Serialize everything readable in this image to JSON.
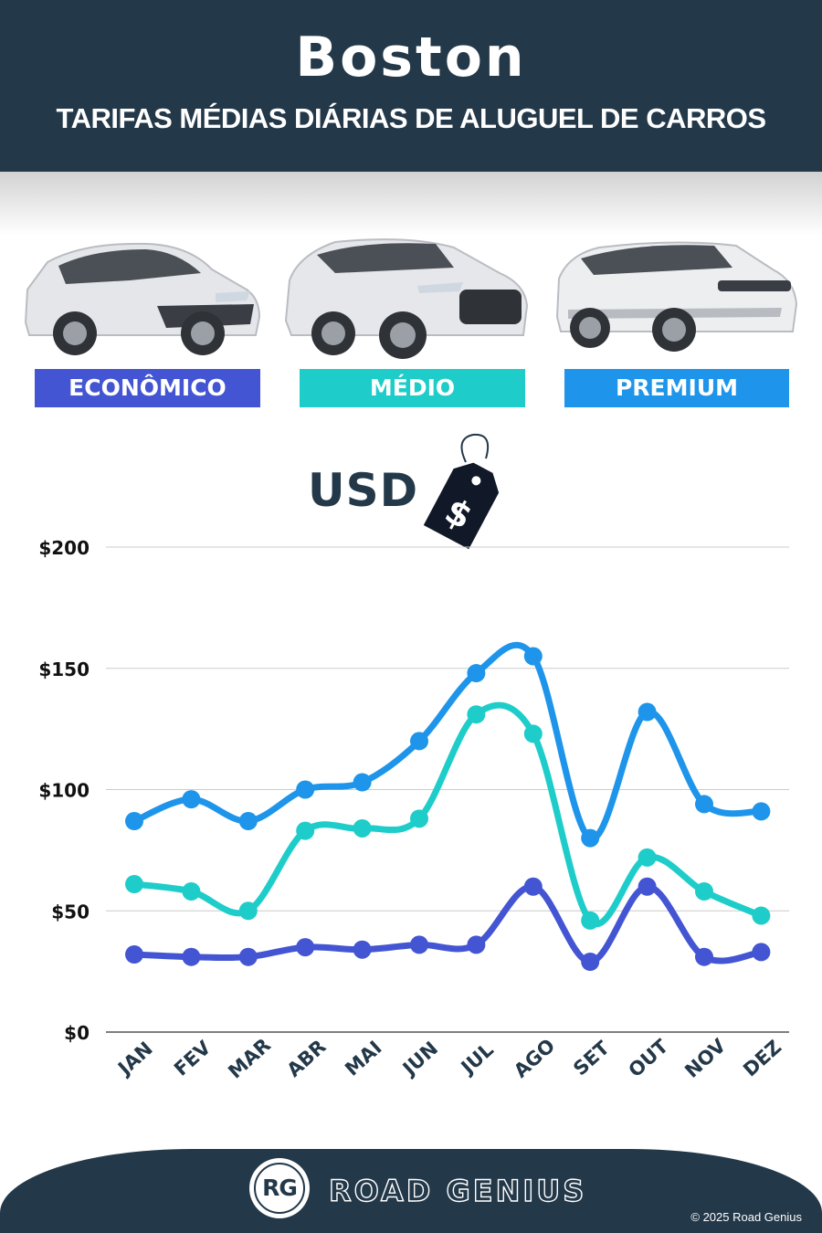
{
  "header": {
    "city": "Boston",
    "subtitle": "TARIFAS MÉDIAS DIÁRIAS DE ALUGUEL DE CARROS"
  },
  "categories": {
    "economico": "ECONÔMICO",
    "medio": "MÉDIO",
    "premium": "PREMIUM"
  },
  "currency": {
    "label": "USD",
    "tag_symbol": "$"
  },
  "chart_data": {
    "type": "line",
    "title": "",
    "xlabel": "",
    "ylabel": "",
    "categories": [
      "JAN",
      "FEV",
      "MAR",
      "ABR",
      "MAI",
      "JUN",
      "JUL",
      "AGO",
      "SET",
      "OUT",
      "NOV",
      "DEZ"
    ],
    "ylim": [
      0,
      200
    ],
    "yticks": [
      0,
      50,
      100,
      150,
      200
    ],
    "ytick_labels": [
      "$0",
      "$50",
      "$100",
      "$150",
      "$200"
    ],
    "grid": true,
    "series": [
      {
        "key": "economico",
        "color": "#4355d3",
        "values": [
          32,
          31,
          31,
          35,
          34,
          36,
          36,
          60,
          29,
          60,
          31,
          33
        ]
      },
      {
        "key": "medio",
        "color": "#1ecdc9",
        "values": [
          61,
          58,
          50,
          83,
          84,
          88,
          131,
          123,
          46,
          72,
          58,
          48
        ]
      },
      {
        "key": "premium",
        "color": "#1e95ea",
        "values": [
          87,
          96,
          87,
          100,
          103,
          120,
          148,
          155,
          80,
          132,
          94,
          91
        ]
      }
    ]
  },
  "footer": {
    "logo_mark": "RG",
    "brand": "ROAD GENIUS",
    "copyright": "© 2025 Road Genius"
  }
}
